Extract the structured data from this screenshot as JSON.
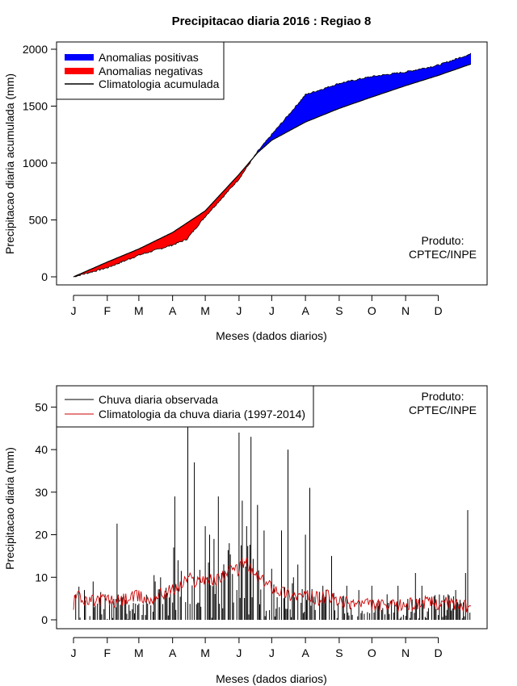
{
  "title": "Precipitacao diaria 2016 : Regiao 8",
  "chart_data": [
    {
      "type": "area",
      "title": "Precipitacao diaria 2016 : Regiao 8",
      "xlabel": "Meses (dados diarios)",
      "ylabel": "Precipitacao diaria acumulada (mm)",
      "x_ticks": [
        "J",
        "F",
        "M",
        "A",
        "M",
        "J",
        "J",
        "A",
        "S",
        "O",
        "N",
        "D"
      ],
      "x_tick_days": [
        1,
        32,
        61,
        92,
        122,
        153,
        183,
        214,
        245,
        275,
        306,
        336
      ],
      "xlim": [
        1,
        366
      ],
      "ylim": [
        0,
        2000
      ],
      "y_ticks": [
        0,
        500,
        1000,
        1500,
        2000
      ],
      "legend": [
        "Anomalias positivas",
        "Anomalias negativas",
        "Climatologia acumulada"
      ],
      "legend_colors": [
        "#0000ff",
        "#ff0000",
        "#000000"
      ],
      "product_label": [
        "Produto:",
        "CPTEC/INPE"
      ],
      "climatology_knots": [
        [
          1,
          0
        ],
        [
          32,
          130
        ],
        [
          61,
          245
        ],
        [
          92,
          390
        ],
        [
          122,
          580
        ],
        [
          153,
          900
        ],
        [
          170,
          1090
        ],
        [
          183,
          1200
        ],
        [
          214,
          1360
        ],
        [
          245,
          1480
        ],
        [
          275,
          1580
        ],
        [
          306,
          1680
        ],
        [
          336,
          1770
        ],
        [
          366,
          1870
        ]
      ],
      "observed_knots": [
        [
          1,
          0
        ],
        [
          32,
          80
        ],
        [
          61,
          190
        ],
        [
          92,
          280
        ],
        [
          105,
          330
        ],
        [
          122,
          530
        ],
        [
          140,
          720
        ],
        [
          153,
          860
        ],
        [
          170,
          1100
        ],
        [
          183,
          1250
        ],
        [
          200,
          1440
        ],
        [
          214,
          1600
        ],
        [
          245,
          1700
        ],
        [
          275,
          1760
        ],
        [
          306,
          1800
        ],
        [
          336,
          1860
        ],
        [
          366,
          1960
        ]
      ]
    },
    {
      "type": "bar",
      "title": "",
      "xlabel": "Meses (dados diarios)",
      "ylabel": "Precipitacao diaria (mm)",
      "x_ticks": [
        "J",
        "F",
        "M",
        "A",
        "M",
        "J",
        "J",
        "A",
        "S",
        "O",
        "N",
        "D"
      ],
      "x_tick_days": [
        1,
        32,
        61,
        92,
        122,
        153,
        183,
        214,
        245,
        275,
        306,
        336
      ],
      "xlim": [
        1,
        366
      ],
      "ylim": [
        0,
        55
      ],
      "y_ticks": [
        0,
        10,
        20,
        30,
        40,
        50
      ],
      "legend": [
        "Chuva diaria observada",
        "Climatologia da chuva diaria (1997-2014)"
      ],
      "legend_colors": [
        "#000000",
        "#cc0000"
      ],
      "product_label": [
        "Produto:",
        "CPTEC/INPE"
      ],
      "peaks": [
        [
          3,
          6
        ],
        [
          11,
          7
        ],
        [
          19,
          9
        ],
        [
          30,
          6
        ],
        [
          41,
          22.6
        ],
        [
          75,
          10.5
        ],
        [
          76,
          9
        ],
        [
          81,
          10
        ],
        [
          85,
          6
        ],
        [
          100,
          11.5
        ],
        [
          94,
          29
        ],
        [
          93,
          17
        ],
        [
          97,
          14
        ],
        [
          106,
          46
        ],
        [
          112,
          37
        ],
        [
          122,
          22
        ],
        [
          126,
          20
        ],
        [
          130,
          19
        ],
        [
          134,
          29
        ],
        [
          144,
          18
        ],
        [
          153,
          44
        ],
        [
          156,
          28
        ],
        [
          160,
          22
        ],
        [
          164,
          43
        ],
        [
          170,
          27
        ],
        [
          176,
          21
        ],
        [
          183,
          12
        ],
        [
          192,
          21
        ],
        [
          198,
          40
        ],
        [
          203,
          10
        ],
        [
          207,
          13
        ],
        [
          214,
          20
        ],
        [
          218,
          31
        ],
        [
          230,
          8
        ],
        [
          238,
          15
        ],
        [
          252,
          8
        ],
        [
          263,
          7
        ],
        [
          275,
          8
        ],
        [
          289,
          6
        ],
        [
          299,
          8
        ],
        [
          315,
          11
        ],
        [
          321,
          8
        ],
        [
          345,
          6
        ],
        [
          352,
          7
        ],
        [
          361,
          11
        ],
        [
          363,
          25.8
        ]
      ],
      "clim_knots": [
        [
          1,
          3
        ],
        [
          5,
          8
        ],
        [
          10,
          4
        ],
        [
          20,
          4.5
        ],
        [
          30,
          5
        ],
        [
          40,
          4
        ],
        [
          50,
          5
        ],
        [
          61,
          5.5
        ],
        [
          70,
          4.5
        ],
        [
          80,
          6
        ],
        [
          92,
          7
        ],
        [
          100,
          8
        ],
        [
          106,
          10
        ],
        [
          112,
          9
        ],
        [
          122,
          10
        ],
        [
          130,
          9
        ],
        [
          140,
          11
        ],
        [
          153,
          12
        ],
        [
          158,
          14
        ],
        [
          165,
          11
        ],
        [
          175,
          9
        ],
        [
          183,
          8
        ],
        [
          190,
          7
        ],
        [
          200,
          6
        ],
        [
          214,
          5.5
        ],
        [
          225,
          5
        ],
        [
          235,
          5.5
        ],
        [
          245,
          4
        ],
        [
          260,
          4
        ],
        [
          275,
          3.5
        ],
        [
          290,
          3
        ],
        [
          306,
          3.5
        ],
        [
          320,
          4
        ],
        [
          336,
          4
        ],
        [
          350,
          4
        ],
        [
          360,
          3
        ],
        [
          366,
          3
        ]
      ]
    }
  ]
}
